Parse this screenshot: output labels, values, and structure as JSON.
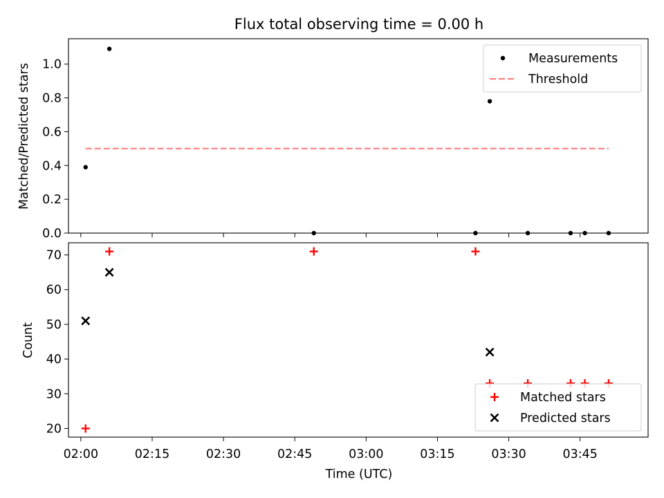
{
  "chart_data": {
    "type": "scatter",
    "title": "Flux total observing time = 0.00 h",
    "xlabel": "Time (UTC)",
    "xlim_minutes": [
      -2.6,
      119.3
    ],
    "x_ticks": [
      {
        "minutes": 0,
        "label": "02:00"
      },
      {
        "minutes": 15,
        "label": "02:15"
      },
      {
        "minutes": 30,
        "label": "02:30"
      },
      {
        "minutes": 45,
        "label": "02:45"
      },
      {
        "minutes": 60,
        "label": "03:00"
      },
      {
        "minutes": 75,
        "label": "03:15"
      },
      {
        "minutes": 90,
        "label": "03:30"
      },
      {
        "minutes": 105,
        "label": "03:45"
      }
    ],
    "panels": [
      {
        "name": "ratio",
        "ylabel": "Matched/Predicted stars",
        "ylim": [
          0,
          1.15
        ],
        "y_ticks": [
          "0.0",
          "0.2",
          "0.4",
          "0.6",
          "0.8",
          "1.0"
        ],
        "legend_position": "upper right",
        "series": [
          {
            "name": "Measurements",
            "marker": "dot",
            "color": "#000000",
            "points": [
              {
                "time": "02:01",
                "y": 0.39
              },
              {
                "time": "02:06",
                "y": 1.09
              },
              {
                "time": "02:49",
                "y": 0.0
              },
              {
                "time": "03:23",
                "y": 0.0
              },
              {
                "time": "03:26",
                "y": 0.78
              },
              {
                "time": "03:34",
                "y": 0.0
              },
              {
                "time": "03:43",
                "y": 0.0
              },
              {
                "time": "03:46",
                "y": 0.0
              },
              {
                "time": "03:51",
                "y": 0.0
              }
            ]
          },
          {
            "name": "Threshold",
            "marker": "dashed-line",
            "color": "#ff7f7f",
            "points": [
              {
                "time": "02:01",
                "y": 0.5
              },
              {
                "time": "03:51",
                "y": 0.5
              }
            ]
          }
        ]
      },
      {
        "name": "counts",
        "ylabel": "Count",
        "ylim": [
          17.5,
          73.5
        ],
        "y_ticks": [
          "20",
          "30",
          "40",
          "50",
          "60",
          "70"
        ],
        "legend_position": "lower right",
        "series": [
          {
            "name": "Matched stars",
            "marker": "plus",
            "color": "#ff0000",
            "points": [
              {
                "time": "02:01",
                "y": 20
              },
              {
                "time": "02:06",
                "y": 71
              },
              {
                "time": "02:49",
                "y": 71
              },
              {
                "time": "03:23",
                "y": 71
              },
              {
                "time": "03:26",
                "y": 33
              },
              {
                "time": "03:34",
                "y": 33
              },
              {
                "time": "03:43",
                "y": 33
              },
              {
                "time": "03:46",
                "y": 33
              },
              {
                "time": "03:51",
                "y": 33
              }
            ]
          },
          {
            "name": "Predicted stars",
            "marker": "x",
            "color": "#000000",
            "points": [
              {
                "time": "02:01",
                "y": 51
              },
              {
                "time": "02:06",
                "y": 65
              },
              {
                "time": "03:26",
                "y": 42
              }
            ]
          }
        ]
      }
    ]
  }
}
